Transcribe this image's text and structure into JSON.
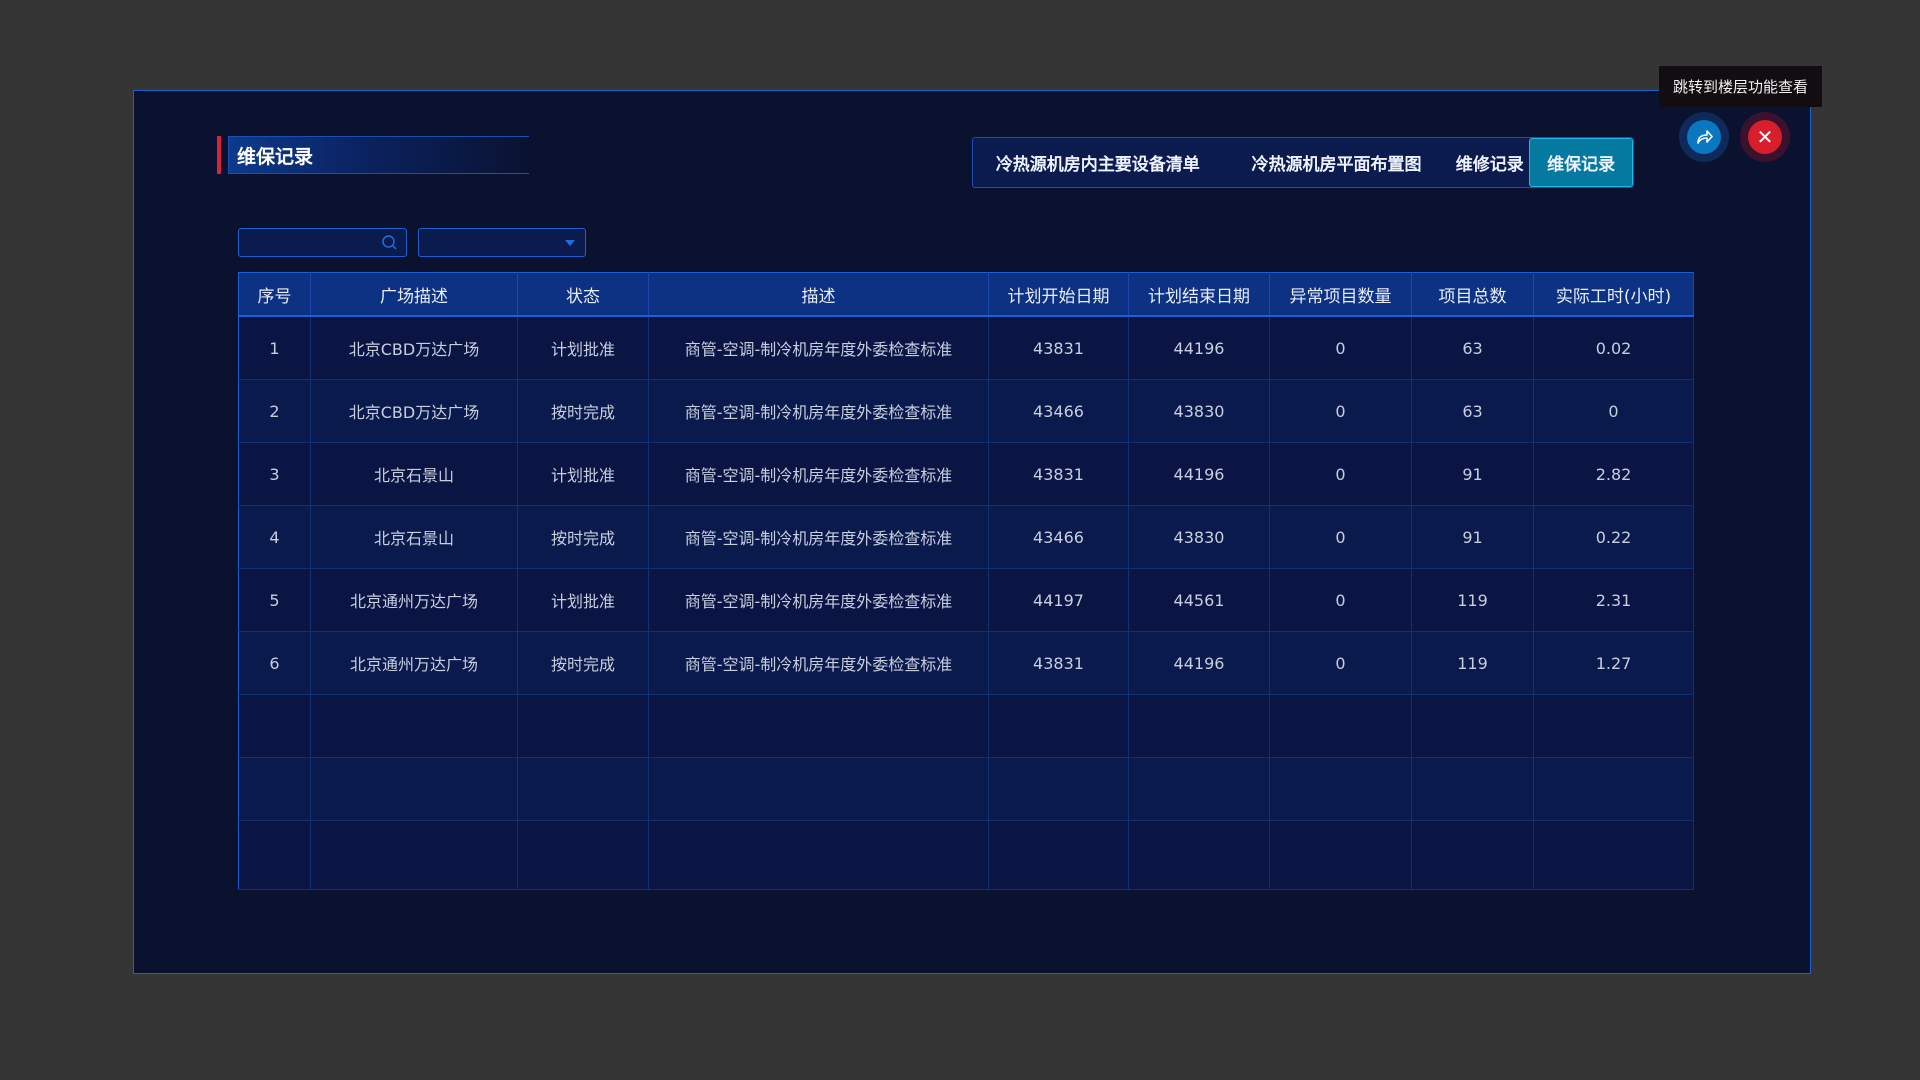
{
  "title": "维保记录",
  "tabs": [
    {
      "label": "冷热源机房内主要设备清单",
      "active": false
    },
    {
      "label": "冷热源机房平面布置图",
      "active": false
    },
    {
      "label": "维修记录",
      "active": false
    },
    {
      "label": "维保记录",
      "active": true
    }
  ],
  "tooltip": "跳转到楼层功能查看",
  "icons": {
    "share": "share-arrow-icon",
    "close": "close-icon",
    "search": "search-icon",
    "dropdown": "caret-down-icon"
  },
  "colors": {
    "accent": "#1c5fd0",
    "active_tab": "#0679a0",
    "close": "#d81e2a",
    "title_marker": "#d8243a"
  },
  "search": {
    "value": "",
    "placeholder": ""
  },
  "filter_select": {
    "value": ""
  },
  "table": {
    "columns": [
      "序号",
      "广场描述",
      "状态",
      "描述",
      "计划开始日期",
      "计划结束日期",
      "异常项目数量",
      "项目总数",
      "实际工时(小时)"
    ],
    "rows": [
      [
        "1",
        "北京CBD万达广场",
        "计划批准",
        "商管-空调-制冷机房年度外委检查标准",
        "43831",
        "44196",
        "0",
        "63",
        "0.02"
      ],
      [
        "2",
        "北京CBD万达广场",
        "按时完成",
        "商管-空调-制冷机房年度外委检查标准",
        "43466",
        "43830",
        "0",
        "63",
        "0"
      ],
      [
        "3",
        "北京石景山",
        "计划批准",
        "商管-空调-制冷机房年度外委检查标准",
        "43831",
        "44196",
        "0",
        "91",
        "2.82"
      ],
      [
        "4",
        "北京石景山",
        "按时完成",
        "商管-空调-制冷机房年度外委检查标准",
        "43466",
        "43830",
        "0",
        "91",
        "0.22"
      ],
      [
        "5",
        "北京通州万达广场",
        "计划批准",
        "商管-空调-制冷机房年度外委检查标准",
        "44197",
        "44561",
        "0",
        "119",
        "2.31"
      ],
      [
        "6",
        "北京通州万达广场",
        "按时完成",
        "商管-空调-制冷机房年度外委检查标准",
        "43831",
        "44196",
        "0",
        "119",
        "1.27"
      ]
    ]
  }
}
